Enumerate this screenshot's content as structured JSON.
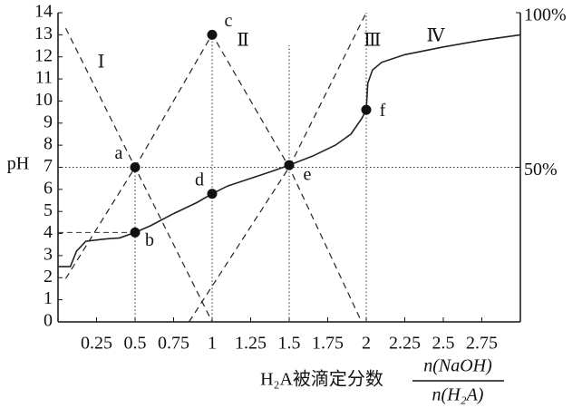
{
  "chart_data": {
    "type": "line",
    "y_label": "pH",
    "x_label": "H₂A被滴定分数",
    "x_label_numerator": "n(NaOH)",
    "x_label_denominator": "n(H₂A)",
    "xlim": [
      0,
      3
    ],
    "xticks": [
      0.25,
      0.5,
      0.75,
      1,
      1.25,
      1.5,
      1.75,
      2,
      2.25,
      2.5,
      2.75
    ],
    "ylim": [
      0,
      14
    ],
    "yticks": [
      0,
      1,
      2,
      3,
      4,
      5,
      6,
      7,
      8,
      9,
      10,
      11,
      12,
      13,
      14
    ],
    "y2lim": [
      0,
      100
    ],
    "y2ticks": [
      {
        "value": 50,
        "label": "50%"
      },
      {
        "value": 100,
        "label": "100%"
      }
    ],
    "series": [
      {
        "color": "#222",
        "style": "solid",
        "x": [
          0,
          0.08,
          0.12,
          0.18,
          0.3,
          0.4,
          0.5,
          0.6,
          0.75,
          0.9,
          1,
          1.1,
          1.25,
          1.4,
          1.5,
          1.65,
          1.8,
          1.9,
          1.97,
          2,
          2.01,
          2.04,
          2.1,
          2.25,
          2.5,
          2.75,
          3
        ],
        "values": [
          2.5,
          2.5,
          3.2,
          3.65,
          3.75,
          3.8,
          4.05,
          4.35,
          4.9,
          5.4,
          5.8,
          6.15,
          6.5,
          6.85,
          7.1,
          7.5,
          8.0,
          8.5,
          9.2,
          9.6,
          10.8,
          11.4,
          11.75,
          12.1,
          12.45,
          12.75,
          13
        ]
      },
      {
        "color": "#222",
        "style": "dashed",
        "axis": "y2",
        "x": [
          0.05,
          0.5,
          1
        ],
        "values": [
          95,
          50,
          0
        ]
      },
      {
        "color": "#222",
        "style": "dashed",
        "axis": "y2",
        "x": [
          0.05,
          0.5,
          1,
          1.5,
          1.97
        ],
        "values": [
          14,
          50,
          93,
          50,
          0
        ]
      },
      {
        "color": "#222",
        "style": "dashed",
        "axis": "y2",
        "x": [
          0.85,
          1.5,
          2
        ],
        "values": [
          0,
          50,
          100
        ]
      }
    ],
    "points": [
      {
        "label": "a",
        "x": 0.5,
        "y": 7
      },
      {
        "label": "b",
        "x": 0.5,
        "y": 4.05
      },
      {
        "label": "c",
        "x": 1,
        "y": 13
      },
      {
        "label": "d",
        "x": 1,
        "y": 5.8
      },
      {
        "label": "e",
        "x": 1.5,
        "y": 7.1
      },
      {
        "label": "f",
        "x": 2,
        "y": 9.6
      }
    ],
    "annotations": [
      "Ⅰ",
      "Ⅱ",
      "Ⅲ",
      "Ⅳ"
    ]
  }
}
